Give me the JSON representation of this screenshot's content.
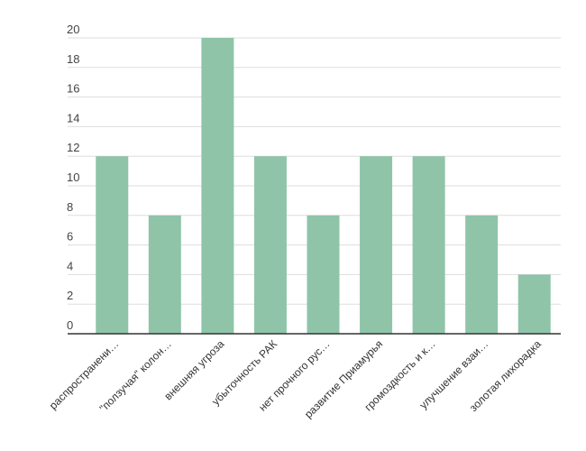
{
  "chart_data": {
    "type": "bar",
    "categories": [
      "распространени…",
      "\"ползучая\" колон…",
      "внешняя угроза",
      "убыточность РАК",
      "нет прочного рус…",
      "развитие Приамурья",
      "громоздкость и к…",
      "улучшение взаи…",
      "золотая лихорадка"
    ],
    "values": [
      12,
      8,
      20,
      12,
      8,
      12,
      12,
      8,
      4
    ],
    "ylim": [
      0,
      20
    ],
    "yticks": [
      0,
      2,
      4,
      6,
      8,
      10,
      12,
      14,
      16,
      18,
      20
    ],
    "yticks_labels": [
      "0",
      "2",
      "4",
      "6",
      "8",
      "10",
      "12",
      "14",
      "16",
      "18",
      "20"
    ],
    "grid": true,
    "legend": "none",
    "colors": {
      "bar": "#8fc4a9",
      "grid": "#dddddd",
      "axis": "#333333"
    }
  }
}
